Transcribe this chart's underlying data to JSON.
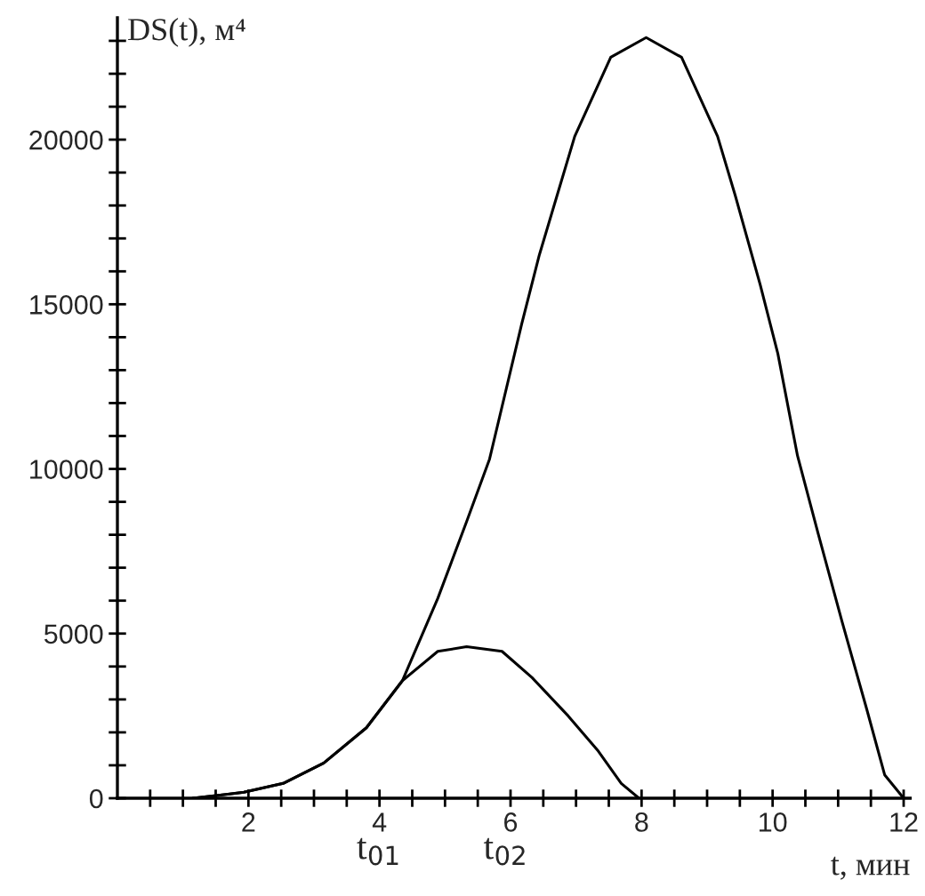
{
  "chart_data": {
    "type": "line",
    "xlabel": "t, мин",
    "ylabel": "DS(t), м⁴",
    "series": [
      {
        "color": "#000000",
        "x": [
          1.15,
          1.93,
          2.53,
          3.15,
          3.8,
          4.35,
          4.89,
          5.33,
          5.87,
          6.33,
          6.88,
          7.34,
          7.69,
          7.96
        ],
        "values": [
          0,
          180,
          450,
          1070,
          2140,
          3570,
          4460,
          4600,
          4460,
          3660,
          2500,
          1430,
          450,
          0
        ]
      },
      {
        "color": "#000000",
        "x": [
          1.15,
          1.93,
          2.53,
          3.15,
          3.8,
          4.35,
          4.89,
          5.33,
          5.68,
          6.17,
          6.44,
          6.71,
          6.98,
          7.53,
          8.07,
          8.61,
          9.16,
          9.43,
          9.81,
          10.08,
          10.38,
          10.7,
          11.06,
          11.44,
          11.71,
          12.0
        ],
        "values": [
          0,
          180,
          450,
          1070,
          2140,
          3570,
          6070,
          8400,
          10300,
          14400,
          16500,
          18300,
          20100,
          22500,
          23100,
          22500,
          20100,
          18300,
          15600,
          13500,
          10400,
          8000,
          5360,
          2680,
          710,
          0
        ]
      }
    ],
    "xlim": [
      0,
      12.1
    ],
    "ylim": [
      0,
      23700
    ],
    "xticks": [
      {
        "value": 0.5,
        "label": null
      },
      {
        "value": 1,
        "label": null
      },
      {
        "value": 1.5,
        "label": null
      },
      2,
      {
        "value": 2.5,
        "label": null
      },
      {
        "value": 3,
        "label": null
      },
      {
        "value": 3.5,
        "label": null
      },
      4,
      {
        "value": 4.5,
        "label": null
      },
      {
        "value": 5,
        "label": null
      },
      {
        "value": 5.5,
        "label": null
      },
      6,
      {
        "value": 6.5,
        "label": null
      },
      {
        "value": 7,
        "label": null
      },
      {
        "value": 7.5,
        "label": null
      },
      8,
      {
        "value": 8.5,
        "label": null
      },
      {
        "value": 9,
        "label": null
      },
      {
        "value": 9.5,
        "label": null
      },
      10,
      {
        "value": 10.5,
        "label": null
      },
      {
        "value": 11,
        "label": null
      },
      {
        "value": 11.5,
        "label": null
      },
      12
    ],
    "yticks": [
      0,
      {
        "value": 1000,
        "label": null
      },
      {
        "value": 2000,
        "label": null
      },
      {
        "value": 3000,
        "label": null
      },
      {
        "value": 4000,
        "label": null
      },
      5000,
      {
        "value": 6000,
        "label": null
      },
      {
        "value": 7000,
        "label": null
      },
      {
        "value": 8000,
        "label": null
      },
      {
        "value": 9000,
        "label": null
      },
      10000,
      {
        "value": 11000,
        "label": null
      },
      {
        "value": 12000,
        "label": null
      },
      {
        "value": 13000,
        "label": null
      },
      {
        "value": 14000,
        "label": null
      },
      15000,
      {
        "value": 16000,
        "label": null
      },
      {
        "value": 17000,
        "label": null
      },
      {
        "value": 18000,
        "label": null
      },
      {
        "value": 19000,
        "label": null
      },
      20000,
      {
        "value": 21000,
        "label": null
      },
      {
        "value": 22000,
        "label": null
      },
      {
        "value": 23000,
        "label": null
      }
    ],
    "annotations": [
      "t$_{01}$",
      "t$_{02}$"
    ],
    "grid": false,
    "line_style": "solid",
    "marker": "none"
  }
}
